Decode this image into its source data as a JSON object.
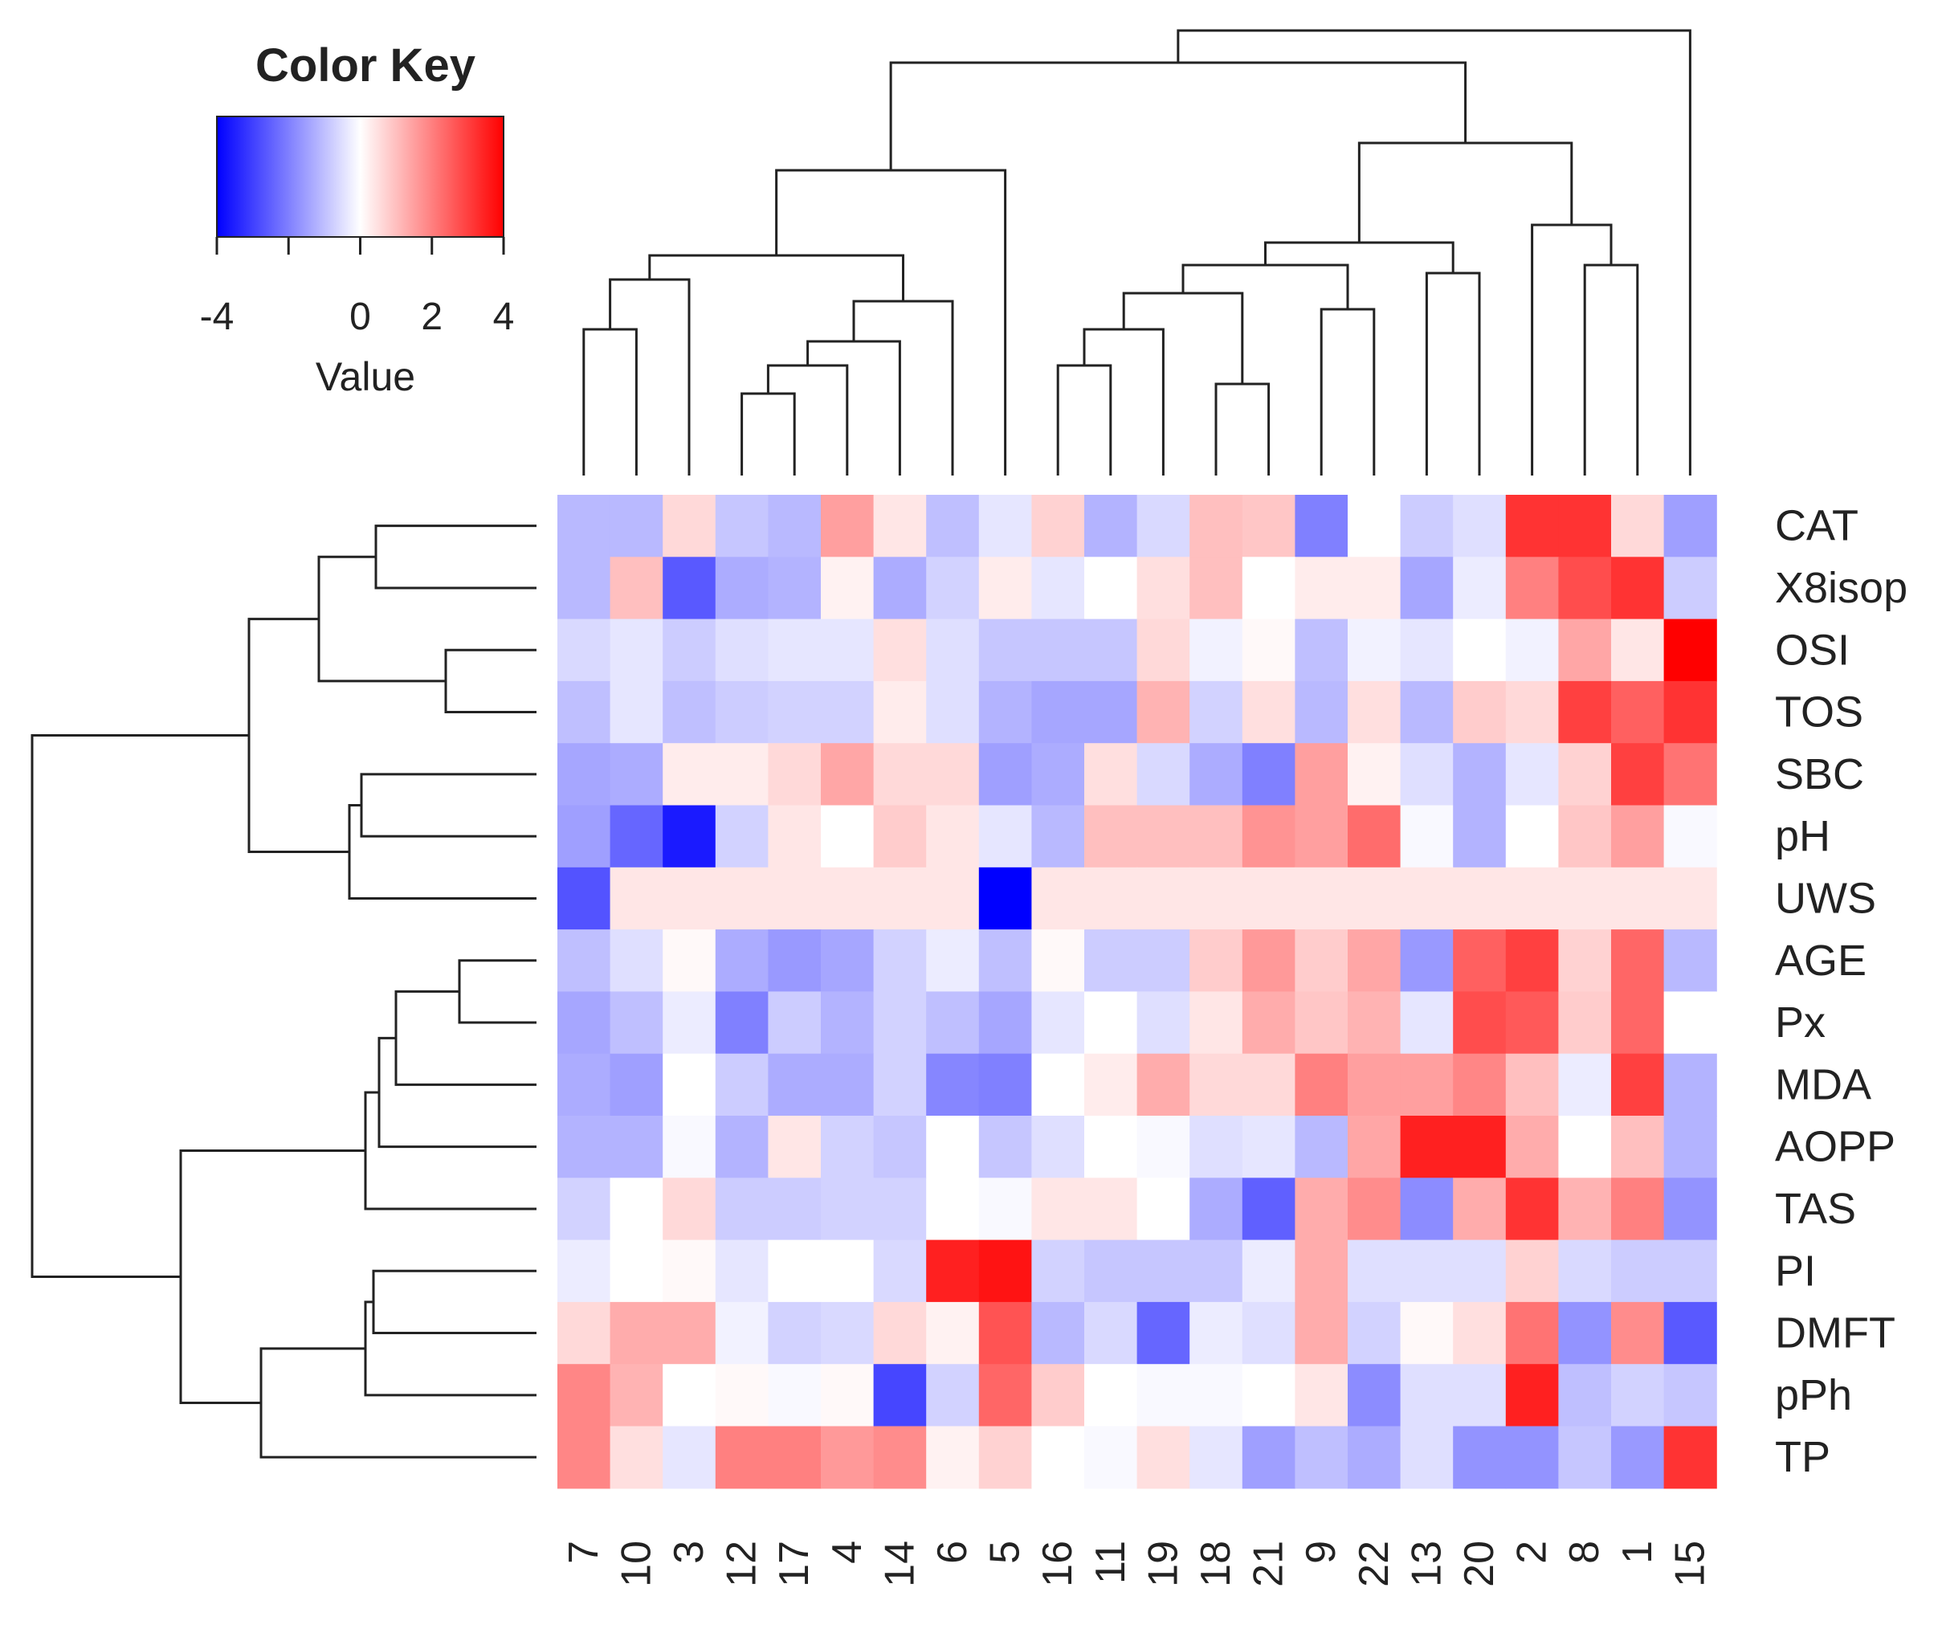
{
  "color_key": {
    "title": "Color Key",
    "xlabel": "Value",
    "ticks": [
      -4,
      -2,
      0,
      2,
      4
    ],
    "tick_labels": [
      "-4",
      "",
      "0",
      "2",
      "4"
    ],
    "range": [
      -4,
      4
    ],
    "colors": {
      "low": "#0000ff",
      "mid": "#ffffff",
      "high": "#ff0000"
    }
  },
  "chart_data": {
    "type": "heatmap",
    "title": "",
    "xlabel": "",
    "ylabel": "",
    "color_range": [
      -4,
      4
    ],
    "columns": [
      "7",
      "10",
      "3",
      "12",
      "17",
      "4",
      "14",
      "6",
      "5",
      "16",
      "11",
      "19",
      "18",
      "21",
      "9",
      "22",
      "13",
      "20",
      "2",
      "8",
      "1",
      "15"
    ],
    "rows": [
      "CAT",
      "X8isop",
      "OSI",
      "TOS",
      "SBC",
      "pH",
      "UWS",
      "AGE",
      "Px",
      "MDA",
      "AOPP",
      "TAS",
      "PI",
      "DMFT",
      "pPh",
      "TP"
    ],
    "values": [
      [
        -1.1,
        -1.1,
        0.6,
        -0.9,
        -1.1,
        1.5,
        0.4,
        -1.0,
        -0.4,
        0.7,
        -1.2,
        -0.6,
        1.0,
        0.9,
        -2.0,
        0.0,
        -0.8,
        -0.5,
        3.2,
        3.2,
        0.6,
        -1.5
      ],
      [
        -1.1,
        1.0,
        -2.6,
        -1.3,
        -1.2,
        0.2,
        -1.3,
        -0.7,
        0.3,
        -0.4,
        0.0,
        0.5,
        1.0,
        0.0,
        0.3,
        0.3,
        -1.4,
        -0.3,
        2.0,
        2.8,
        3.2,
        -0.8
      ],
      [
        -0.6,
        -0.4,
        -0.8,
        -0.5,
        -0.4,
        -0.4,
        0.5,
        -0.5,
        -0.9,
        -0.9,
        -0.9,
        0.6,
        -0.2,
        0.1,
        -1.0,
        -0.2,
        -0.4,
        0.0,
        -0.2,
        1.4,
        0.4,
        4.0
      ],
      [
        -1.0,
        -0.4,
        -1.0,
        -0.8,
        -0.7,
        -0.7,
        0.3,
        -0.5,
        -1.2,
        -1.4,
        -1.4,
        1.2,
        -0.7,
        0.5,
        -1.1,
        0.5,
        -1.1,
        0.8,
        0.6,
        3.0,
        2.5,
        3.2
      ],
      [
        -1.4,
        -1.3,
        0.3,
        0.3,
        0.6,
        1.4,
        0.6,
        0.6,
        -1.5,
        -1.3,
        0.5,
        -0.6,
        -1.3,
        -2.0,
        1.5,
        0.2,
        -0.5,
        -1.2,
        -0.4,
        0.7,
        3.0,
        2.2
      ],
      [
        -1.5,
        -2.4,
        -3.6,
        -0.7,
        0.4,
        0.0,
        0.8,
        0.4,
        -0.4,
        -1.1,
        1.0,
        1.0,
        1.0,
        1.7,
        1.5,
        2.3,
        -0.1,
        -1.2,
        0.0,
        0.9,
        1.5,
        -0.1
      ],
      [
        -2.7,
        0.4,
        0.4,
        0.4,
        0.4,
        0.4,
        0.4,
        0.4,
        -4.0,
        0.4,
        0.4,
        0.4,
        0.4,
        0.4,
        0.4,
        0.4,
        0.4,
        0.4,
        0.4,
        0.4,
        0.4,
        0.4
      ],
      [
        -1.0,
        -0.5,
        0.1,
        -1.3,
        -1.6,
        -1.4,
        -0.7,
        -0.3,
        -1.0,
        0.1,
        -0.8,
        -0.8,
        0.8,
        1.6,
        0.8,
        1.4,
        -1.6,
        2.5,
        3.0,
        0.7,
        2.4,
        -1.1
      ],
      [
        -1.4,
        -1.0,
        -0.3,
        -2.0,
        -0.8,
        -1.2,
        -0.7,
        -1.0,
        -1.4,
        -0.4,
        0.0,
        -0.5,
        0.4,
        1.3,
        0.9,
        1.2,
        -0.4,
        2.8,
        2.6,
        0.8,
        2.4,
        0.0
      ],
      [
        -1.3,
        -1.5,
        0.0,
        -0.8,
        -1.3,
        -1.3,
        -0.7,
        -1.9,
        -2.0,
        0.0,
        0.3,
        1.3,
        0.6,
        0.6,
        2.0,
        1.5,
        1.5,
        1.9,
        1.0,
        -0.3,
        3.0,
        -1.2
      ],
      [
        -1.2,
        -1.2,
        -0.1,
        -1.2,
        0.4,
        -0.7,
        -0.9,
        0.0,
        -0.9,
        -0.5,
        0.0,
        -0.1,
        -0.5,
        -0.4,
        -1.1,
        1.4,
        3.5,
        3.5,
        1.3,
        0.0,
        1.0,
        -1.2
      ],
      [
        -0.7,
        0.0,
        0.6,
        -0.8,
        -0.8,
        -0.7,
        -0.7,
        0.0,
        -0.1,
        0.4,
        0.4,
        0.0,
        -1.3,
        -2.5,
        1.3,
        1.8,
        -1.8,
        1.3,
        3.2,
        1.2,
        2.0,
        -1.7
      ],
      [
        -0.3,
        0.0,
        0.1,
        -0.4,
        0.0,
        0.0,
        -0.6,
        3.5,
        3.7,
        -0.7,
        -0.9,
        -0.9,
        -0.9,
        -0.3,
        1.3,
        -0.5,
        -0.5,
        -0.5,
        0.7,
        -0.6,
        -0.8,
        -0.8
      ],
      [
        0.6,
        1.3,
        1.3,
        -0.2,
        -0.7,
        -0.6,
        0.6,
        0.2,
        2.7,
        -1.1,
        -0.6,
        -2.4,
        -0.3,
        -0.5,
        1.3,
        -0.7,
        0.1,
        0.5,
        2.2,
        -1.7,
        1.8,
        -2.6
      ],
      [
        1.9,
        1.2,
        0.0,
        0.1,
        -0.1,
        0.1,
        -2.9,
        -0.7,
        2.4,
        0.8,
        0.0,
        -0.1,
        -0.1,
        0.0,
        0.4,
        -1.8,
        -0.5,
        -0.5,
        3.5,
        -1.0,
        -0.7,
        -0.9
      ],
      [
        1.9,
        0.5,
        -0.4,
        2.0,
        2.0,
        1.6,
        1.8,
        0.2,
        0.7,
        0.0,
        -0.1,
        0.5,
        -0.4,
        -1.5,
        -1.0,
        -1.3,
        -0.5,
        -1.7,
        -1.7,
        -0.9,
        -1.6,
        3.2
      ]
    ]
  }
}
